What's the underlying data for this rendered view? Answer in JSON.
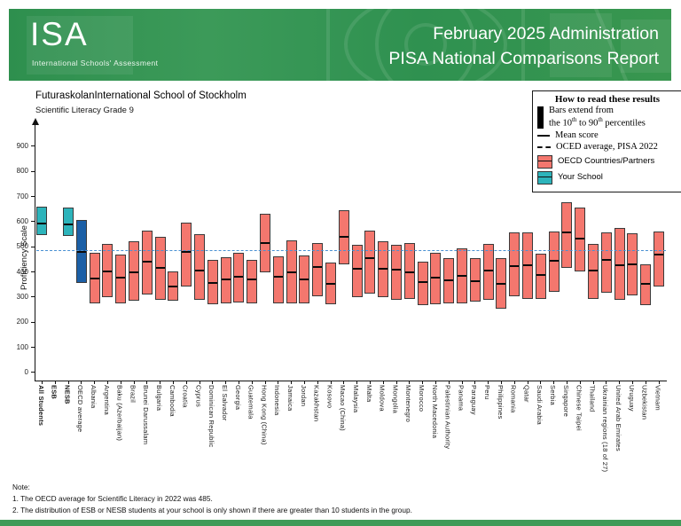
{
  "header": {
    "logo_title": "ISA",
    "logo_subtitle": "International Schools' Assessment",
    "title_line1": "February 2025 Administration",
    "title_line2": "PISA National Comparisons Report"
  },
  "legend": {
    "title": "How to read these results",
    "bars_line1": "Bars extend from",
    "bars_line2_a": "the 10",
    "bars_line2_s1": "th",
    "bars_line2_b": " to 90",
    "bars_line2_s2": "th",
    "bars_line2_c": " percentiles",
    "mean_label": "Mean score",
    "oecd_avg_label": "OCED average, PISA 2022",
    "countries_label": "OECD Countries/Partners",
    "school_label": "Your School"
  },
  "notes": {
    "title": "Note:",
    "item1": "1. The OECD average for Scientific Literacy in 2022 was 485.",
    "item2": "2. The distribution of ESB or NESB students at your school is only shown if there are greater than 10 students in the group."
  },
  "colors": {
    "banner_green": "#2f9150",
    "teal": "#2db4bb",
    "dark_blue": "#1b5fa6",
    "salmon": "#f4776e",
    "reference_blue": "#4a90d2",
    "bar_border": "#3a3a3a",
    "mean_line": "#0a0a0a"
  },
  "chart_data": {
    "type": "bar",
    "subtype": "range-bar (10th-90th percentile with mean marker)",
    "title": "FuturaskolanInternational School of Stockholm",
    "subtitle": "Scientific Literacy Grade 9",
    "xlabel": "",
    "ylabel": "Proficiency Scale",
    "ylim": [
      0,
      980
    ],
    "yticks": [
      0,
      100,
      200,
      300,
      400,
      500,
      600,
      700,
      800,
      900
    ],
    "grid": false,
    "legend_position": "top-right",
    "reference_line": {
      "value": 485,
      "style": "dashed",
      "label": "OECD average, PISA 2022"
    },
    "series": [
      {
        "label": "All Students",
        "p10": 548,
        "mean": 598,
        "p90": 660,
        "group": "school",
        "bold": true
      },
      {
        "label": "ESB",
        "p10": null,
        "mean": null,
        "p90": null,
        "group": "school",
        "bold": true
      },
      {
        "label": "NESB",
        "p10": 542,
        "mean": 592,
        "p90": 658,
        "group": "school",
        "bold": true
      },
      {
        "label": "OECD average",
        "p10": 355,
        "mean": 485,
        "p90": 606,
        "group": "oecd_avg",
        "bold": false
      },
      {
        "label": "Albania",
        "p10": 275,
        "mean": 376,
        "p90": 478,
        "group": "country",
        "bold": false
      },
      {
        "label": "Argentina",
        "p10": 300,
        "mean": 406,
        "p90": 513,
        "group": "country",
        "bold": false
      },
      {
        "label": "Baku (Azerbaijan)",
        "p10": 277,
        "mean": 380,
        "p90": 470,
        "group": "country",
        "bold": false
      },
      {
        "label": "Brazil",
        "p10": 287,
        "mean": 403,
        "p90": 522,
        "group": "country",
        "bold": false
      },
      {
        "label": "Brunei Darussalam",
        "p10": 310,
        "mean": 446,
        "p90": 563,
        "group": "country",
        "bold": false
      },
      {
        "label": "Bulgaria",
        "p10": 291,
        "mean": 421,
        "p90": 541,
        "group": "country",
        "bold": false
      },
      {
        "label": "Cambodia",
        "p10": 286,
        "mean": 347,
        "p90": 402,
        "group": "country",
        "bold": false
      },
      {
        "label": "Croatia",
        "p10": 342,
        "mean": 483,
        "p90": 596,
        "group": "country",
        "bold": false
      },
      {
        "label": "Cyprus",
        "p10": 290,
        "mean": 411,
        "p90": 549,
        "group": "country",
        "bold": false
      },
      {
        "label": "Dominican Republic",
        "p10": 270,
        "mean": 360,
        "p90": 447,
        "group": "country",
        "bold": false
      },
      {
        "label": "El Salvador",
        "p10": 274,
        "mean": 373,
        "p90": 458,
        "group": "country",
        "bold": false
      },
      {
        "label": "Georgia",
        "p10": 278,
        "mean": 384,
        "p90": 478,
        "group": "country",
        "bold": false
      },
      {
        "label": "Guatemala",
        "p10": 276,
        "mean": 373,
        "p90": 447,
        "group": "country",
        "bold": false
      },
      {
        "label": "Hong Kong (China)",
        "p10": 398,
        "mean": 520,
        "p90": 632,
        "group": "country",
        "bold": false
      },
      {
        "label": "Indonesia",
        "p10": 274,
        "mean": 383,
        "p90": 462,
        "group": "country",
        "bold": false
      },
      {
        "label": "Jamaica",
        "p10": 274,
        "mean": 403,
        "p90": 526,
        "group": "country",
        "bold": false
      },
      {
        "label": "Jordan",
        "p10": 274,
        "mean": 375,
        "p90": 467,
        "group": "country",
        "bold": false
      },
      {
        "label": "Kazakhstan",
        "p10": 305,
        "mean": 423,
        "p90": 517,
        "group": "country",
        "bold": false
      },
      {
        "label": "Kosovo",
        "p10": 270,
        "mean": 357,
        "p90": 438,
        "group": "country",
        "bold": false
      },
      {
        "label": "Macao (China)",
        "p10": 430,
        "mean": 543,
        "p90": 647,
        "group": "country",
        "bold": false
      },
      {
        "label": "Malaysia",
        "p10": 300,
        "mean": 416,
        "p90": 509,
        "group": "country",
        "bold": false
      },
      {
        "label": "Malta",
        "p10": 314,
        "mean": 460,
        "p90": 564,
        "group": "country",
        "bold": false
      },
      {
        "label": "Moldova",
        "p10": 300,
        "mean": 417,
        "p90": 523,
        "group": "country",
        "bold": false
      },
      {
        "label": "Mongolia",
        "p10": 290,
        "mean": 412,
        "p90": 509,
        "group": "country",
        "bold": false
      },
      {
        "label": "Montenegro",
        "p10": 294,
        "mean": 403,
        "p90": 514,
        "group": "country",
        "bold": false
      },
      {
        "label": "Morocco",
        "p10": 267,
        "mean": 365,
        "p90": 441,
        "group": "country",
        "bold": false
      },
      {
        "label": "North Macedonia",
        "p10": 270,
        "mean": 380,
        "p90": 478,
        "group": "country",
        "bold": false
      },
      {
        "label": "Palestinian Authority",
        "p10": 274,
        "mean": 369,
        "p90": 455,
        "group": "country",
        "bold": false
      },
      {
        "label": "Panama",
        "p10": 274,
        "mean": 388,
        "p90": 494,
        "group": "country",
        "bold": false
      },
      {
        "label": "Paraguay",
        "p10": 282,
        "mean": 368,
        "p90": 455,
        "group": "country",
        "bold": false
      },
      {
        "label": "Peru",
        "p10": 290,
        "mean": 408,
        "p90": 511,
        "group": "country",
        "bold": false
      },
      {
        "label": "Philippines",
        "p10": 255,
        "mean": 356,
        "p90": 455,
        "group": "country",
        "bold": false
      },
      {
        "label": "Romania",
        "p10": 302,
        "mean": 428,
        "p90": 556,
        "group": "country",
        "bold": false
      },
      {
        "label": "Qatar",
        "p10": 292,
        "mean": 432,
        "p90": 559,
        "group": "country",
        "bold": false
      },
      {
        "label": "Saudi Arabia",
        "p10": 292,
        "mean": 390,
        "p90": 473,
        "group": "country",
        "bold": false
      },
      {
        "label": "Serbia",
        "p10": 320,
        "mean": 447,
        "p90": 562,
        "group": "country",
        "bold": false
      },
      {
        "label": "Singapore",
        "p10": 418,
        "mean": 561,
        "p90": 677,
        "group": "country",
        "bold": false
      },
      {
        "label": "Chinese Taipei",
        "p10": 402,
        "mean": 537,
        "p90": 657,
        "group": "country",
        "bold": false
      },
      {
        "label": "Thailand",
        "p10": 292,
        "mean": 409,
        "p90": 512,
        "group": "country",
        "bold": false
      },
      {
        "label": "Ukrainian regions (18 of 27)",
        "p10": 318,
        "mean": 450,
        "p90": 559,
        "group": "country",
        "bold": false
      },
      {
        "label": "United Arab Emirates",
        "p10": 288,
        "mean": 432,
        "p90": 574,
        "group": "country",
        "bold": false
      },
      {
        "label": "Uruguay",
        "p10": 308,
        "mean": 435,
        "p90": 553,
        "group": "country",
        "bold": false
      },
      {
        "label": "Uzbekistan",
        "p10": 268,
        "mean": 355,
        "p90": 429,
        "group": "country",
        "bold": false
      },
      {
        "label": "Vietnam",
        "p10": 341,
        "mean": 472,
        "p90": 562,
        "group": "country",
        "bold": false
      }
    ]
  }
}
